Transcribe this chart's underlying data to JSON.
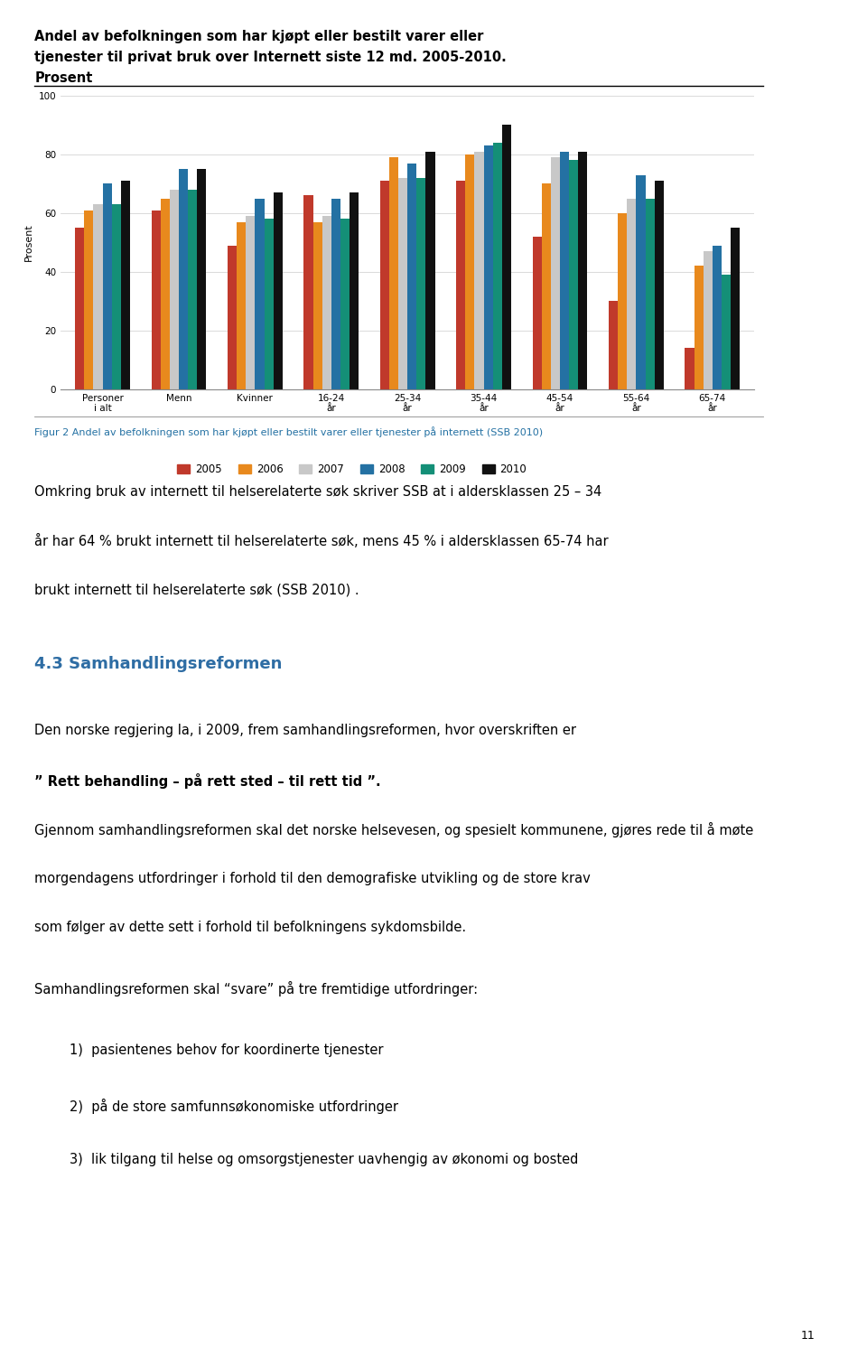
{
  "chart_title_line1": "Andel av befolkningen som har kjøpt eller bestilt varer eller",
  "chart_title_line2": "tjenester til privat bruk over Internett siste 12 md. 2005-2010.",
  "chart_title_line3": "Prosent",
  "ylabel": "Prosent",
  "ylim": [
    0,
    100
  ],
  "yticks": [
    0,
    20,
    40,
    60,
    80,
    100
  ],
  "categories": [
    "Personer\ni alt",
    "Menn",
    "Kvinner",
    "16-24\når",
    "25-34\når",
    "35-44\når",
    "45-54\når",
    "55-64\når",
    "65-74\når"
  ],
  "series": {
    "2005": [
      55,
      61,
      49,
      66,
      71,
      71,
      52,
      30,
      14
    ],
    "2006": [
      61,
      65,
      57,
      57,
      79,
      80,
      70,
      60,
      42
    ],
    "2007": [
      63,
      68,
      59,
      59,
      72,
      81,
      79,
      65,
      47
    ],
    "2008": [
      70,
      75,
      65,
      65,
      77,
      83,
      81,
      73,
      49
    ],
    "2009": [
      63,
      68,
      58,
      58,
      72,
      84,
      78,
      65,
      39
    ],
    "2010": [
      71,
      75,
      67,
      67,
      81,
      90,
      81,
      71,
      55
    ]
  },
  "colors": {
    "2005": "#c0392b",
    "2006": "#e8891d",
    "2007": "#c8c8c8",
    "2008": "#2471a3",
    "2009": "#148f77",
    "2010": "#111111"
  },
  "figcaption": "Figur 2 Andel av befolkningen som har kjøpt eller bestilt varer eller tjenester på internett (SSB 2010)",
  "caption_color": "#2471a3",
  "para1_lines": [
    "Omkring bruk av internett til helserelaterte søk skriver SSB at i aldersklassen 25 – 34",
    "år har 64 % brukt internett til helserelaterte søk, mens 45 % i aldersklassen 65-74 har",
    "brukt internett til helserelaterte søk (SSB 2010) ."
  ],
  "section_title": "4.3 Samhandlingsreformen",
  "section_title_color": "#2e6da4",
  "para2_lines": [
    [
      "Den norske regjering la, i 2009, frem samhandlingsreformen, hvor overskriften er",
      "normal"
    ],
    [
      "” Rett behandling – på rett sted – til rett tid ”.",
      "bold"
    ],
    [
      "Gjennom samhandlingsreformen skal det norske helsevesen, og spesielt kommunene, gjøres rede til å møte",
      "normal"
    ],
    [
      "morgendagens utfordringer i forhold til den demografiske utvikling og de store krav",
      "normal"
    ],
    [
      "som følger av dette sett i forhold til befolkningens sykdomsbilde.",
      "normal"
    ]
  ],
  "para3": "Samhandlingsreformen skal “svare” på tre fremtidige utfordringer:",
  "list_items": [
    "pasientenes behov for koordinerte tjenester",
    "på de store samfunnsøkonomiske utfordringer",
    "lik tilgang til helse og omsorgstjenester uavhengig av økonomi og bosted"
  ],
  "page_number": "11",
  "background_color": "#ffffff"
}
